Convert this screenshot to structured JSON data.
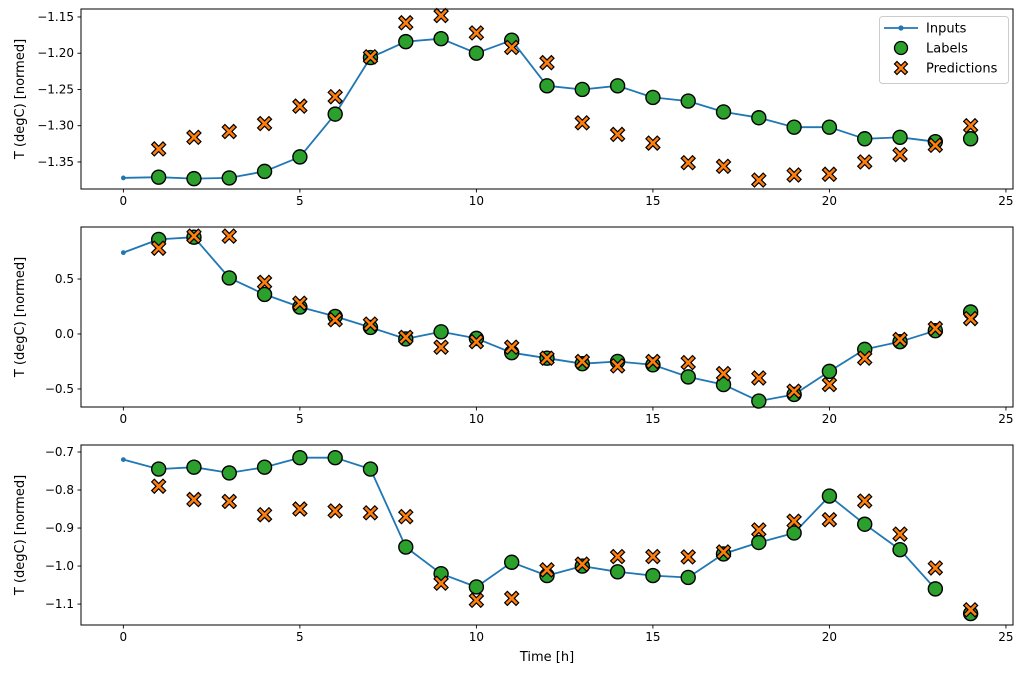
{
  "figure": {
    "xlabel": "Time [h]",
    "background": "#ffffff",
    "axis_color": "#000000",
    "legend": {
      "position": "upper-right-of-first-subplot",
      "entries": [
        {
          "label": "Inputs",
          "marker": "line-dot",
          "color": "#1f77b4"
        },
        {
          "label": "Labels",
          "marker": "circle",
          "color": "#2ca02c"
        },
        {
          "label": "Predictions",
          "marker": "x-cross",
          "color": "#ff7f0e"
        }
      ]
    }
  },
  "chart_data": [
    {
      "type": "line",
      "subplot": 1,
      "ylabel": "T (degC) [normed]",
      "grid": false,
      "xlim": [
        -1.2,
        25.2
      ],
      "ylim": [
        -1.3873,
        -1.139
      ],
      "xticks": [
        0,
        5,
        10,
        15,
        20,
        25
      ],
      "xtick_labels": [
        "0",
        "5",
        "10",
        "15",
        "20",
        "25"
      ],
      "yticks": [
        -1.15,
        -1.2,
        -1.25,
        -1.3,
        -1.35
      ],
      "ytick_labels": [
        "−1.15",
        "−1.20",
        "−1.25",
        "−1.30",
        "−1.35"
      ],
      "series": [
        {
          "name": "Inputs",
          "marker": "line-dot",
          "color": "#1f77b4",
          "x": [
            0,
            1,
            2,
            3,
            4,
            5,
            6,
            7,
            8,
            9,
            10,
            11,
            12,
            13,
            14,
            15,
            16,
            17,
            18,
            19,
            20,
            21,
            22,
            23
          ],
          "y": [
            -1.372,
            -1.371,
            -1.373,
            -1.372,
            -1.363,
            -1.343,
            -1.284,
            -1.206,
            -1.184,
            -1.18,
            -1.2,
            -1.182,
            -1.245,
            -1.25,
            -1.245,
            -1.261,
            -1.266,
            -1.281,
            -1.289,
            -1.302,
            -1.302,
            -1.318,
            -1.316,
            -1.322
          ]
        },
        {
          "name": "Labels",
          "marker": "circle",
          "color": "#2ca02c",
          "x": [
            1,
            2,
            3,
            4,
            5,
            6,
            7,
            8,
            9,
            10,
            11,
            12,
            13,
            14,
            15,
            16,
            17,
            18,
            19,
            20,
            21,
            22,
            23,
            24
          ],
          "y": [
            -1.371,
            -1.373,
            -1.372,
            -1.363,
            -1.343,
            -1.284,
            -1.206,
            -1.184,
            -1.18,
            -1.2,
            -1.182,
            -1.245,
            -1.25,
            -1.245,
            -1.261,
            -1.266,
            -1.281,
            -1.289,
            -1.302,
            -1.302,
            -1.318,
            -1.316,
            -1.322,
            -1.318
          ]
        },
        {
          "name": "Predictions",
          "marker": "x-cross",
          "color": "#ff7f0e",
          "x": [
            1,
            2,
            3,
            4,
            5,
            6,
            7,
            8,
            9,
            10,
            11,
            12,
            13,
            14,
            15,
            16,
            17,
            18,
            19,
            20,
            21,
            22,
            23,
            24
          ],
          "y": [
            -1.332,
            -1.316,
            -1.308,
            -1.297,
            -1.273,
            -1.26,
            -1.205,
            -1.158,
            -1.148,
            -1.172,
            -1.192,
            -1.213,
            -1.296,
            -1.312,
            -1.324,
            -1.351,
            -1.356,
            -1.375,
            -1.368,
            -1.367,
            -1.35,
            -1.34,
            -1.327,
            -1.3
          ]
        }
      ]
    },
    {
      "type": "line",
      "subplot": 2,
      "ylabel": "T (degC) [normed]",
      "grid": false,
      "xlim": [
        -1.2,
        25.2
      ],
      "ylim": [
        -0.664,
        0.973
      ],
      "xticks": [
        0,
        5,
        10,
        15,
        20,
        25
      ],
      "xtick_labels": [
        "0",
        "5",
        "10",
        "15",
        "20",
        "25"
      ],
      "yticks": [
        0.5,
        0.0,
        -0.5
      ],
      "ytick_labels": [
        "0.5",
        "0.0",
        "−0.5"
      ],
      "series": [
        {
          "name": "Inputs",
          "marker": "line-dot",
          "color": "#1f77b4",
          "x": [
            0,
            1,
            2,
            3,
            4,
            5,
            6,
            7,
            8,
            9,
            10,
            11,
            12,
            13,
            14,
            15,
            16,
            17,
            18,
            19,
            20,
            21,
            22,
            23
          ],
          "y": [
            0.74,
            0.86,
            0.88,
            0.51,
            0.36,
            0.245,
            0.16,
            0.06,
            -0.045,
            0.02,
            -0.04,
            -0.17,
            -0.22,
            -0.27,
            -0.25,
            -0.28,
            -0.39,
            -0.46,
            -0.61,
            -0.55,
            -0.34,
            -0.14,
            -0.07,
            0.03
          ]
        },
        {
          "name": "Labels",
          "marker": "circle",
          "color": "#2ca02c",
          "x": [
            1,
            2,
            3,
            4,
            5,
            6,
            7,
            8,
            9,
            10,
            11,
            12,
            13,
            14,
            15,
            16,
            17,
            18,
            19,
            20,
            21,
            22,
            23,
            24
          ],
          "y": [
            0.86,
            0.88,
            0.51,
            0.36,
            0.245,
            0.16,
            0.06,
            -0.045,
            0.02,
            -0.04,
            -0.17,
            -0.22,
            -0.27,
            -0.25,
            -0.28,
            -0.39,
            -0.46,
            -0.61,
            -0.55,
            -0.34,
            -0.14,
            -0.07,
            0.03,
            0.2
          ]
        },
        {
          "name": "Predictions",
          "marker": "x-cross",
          "color": "#ff7f0e",
          "x": [
            1,
            2,
            3,
            4,
            5,
            6,
            7,
            8,
            9,
            10,
            11,
            12,
            13,
            14,
            15,
            16,
            17,
            18,
            19,
            20,
            21,
            22,
            23,
            24
          ],
          "y": [
            0.78,
            0.89,
            0.89,
            0.47,
            0.28,
            0.13,
            0.09,
            -0.03,
            -0.12,
            -0.07,
            -0.12,
            -0.22,
            -0.25,
            -0.29,
            -0.25,
            -0.26,
            -0.36,
            -0.4,
            -0.52,
            -0.46,
            -0.22,
            -0.05,
            0.05,
            0.14
          ]
        }
      ]
    },
    {
      "type": "line",
      "subplot": 3,
      "ylabel": "T (degC) [normed]",
      "grid": false,
      "xlim": [
        -1.2,
        25.2
      ],
      "ylim": [
        -1.155,
        -0.6816
      ],
      "xticks": [
        0,
        5,
        10,
        15,
        20,
        25
      ],
      "xtick_labels": [
        "0",
        "5",
        "10",
        "15",
        "20",
        "25"
      ],
      "yticks": [
        -0.7,
        -0.8,
        -0.9,
        -1.0,
        -1.1
      ],
      "ytick_labels": [
        "−0.7",
        "−0.8",
        "−0.9",
        "−1.0",
        "−1.1"
      ],
      "series": [
        {
          "name": "Inputs",
          "marker": "line-dot",
          "color": "#1f77b4",
          "x": [
            0,
            1,
            2,
            3,
            4,
            5,
            6,
            7,
            8,
            9,
            10,
            11,
            12,
            13,
            14,
            15,
            16,
            17,
            18,
            19,
            20,
            21,
            22,
            23
          ],
          "y": [
            -0.72,
            -0.745,
            -0.74,
            -0.755,
            -0.74,
            -0.715,
            -0.715,
            -0.745,
            -0.95,
            -1.02,
            -1.055,
            -0.99,
            -1.025,
            -1.0,
            -1.015,
            -1.025,
            -1.03,
            -0.968,
            -0.938,
            -0.913,
            -0.816,
            -0.89,
            -0.957,
            -1.06
          ]
        },
        {
          "name": "Labels",
          "marker": "circle",
          "color": "#2ca02c",
          "x": [
            1,
            2,
            3,
            4,
            5,
            6,
            7,
            8,
            9,
            10,
            11,
            12,
            13,
            14,
            15,
            16,
            17,
            18,
            19,
            20,
            21,
            22,
            23,
            24
          ],
          "y": [
            -0.745,
            -0.74,
            -0.755,
            -0.74,
            -0.715,
            -0.715,
            -0.745,
            -0.95,
            -1.02,
            -1.055,
            -0.99,
            -1.025,
            -1.0,
            -1.015,
            -1.025,
            -1.03,
            -0.968,
            -0.938,
            -0.913,
            -0.816,
            -0.89,
            -0.957,
            -1.06,
            -1.125
          ]
        },
        {
          "name": "Predictions",
          "marker": "x-cross",
          "color": "#ff7f0e",
          "x": [
            1,
            2,
            3,
            4,
            5,
            6,
            7,
            8,
            9,
            10,
            11,
            12,
            13,
            14,
            15,
            16,
            17,
            18,
            19,
            20,
            21,
            22,
            23,
            24
          ],
          "y": [
            -0.79,
            -0.825,
            -0.83,
            -0.865,
            -0.85,
            -0.855,
            -0.86,
            -0.87,
            -1.045,
            -1.09,
            -1.085,
            -1.01,
            -0.995,
            -0.975,
            -0.975,
            -0.976,
            -0.963,
            -0.905,
            -0.882,
            -0.878,
            -0.829,
            -0.916,
            -1.005,
            -1.115
          ]
        }
      ]
    }
  ]
}
